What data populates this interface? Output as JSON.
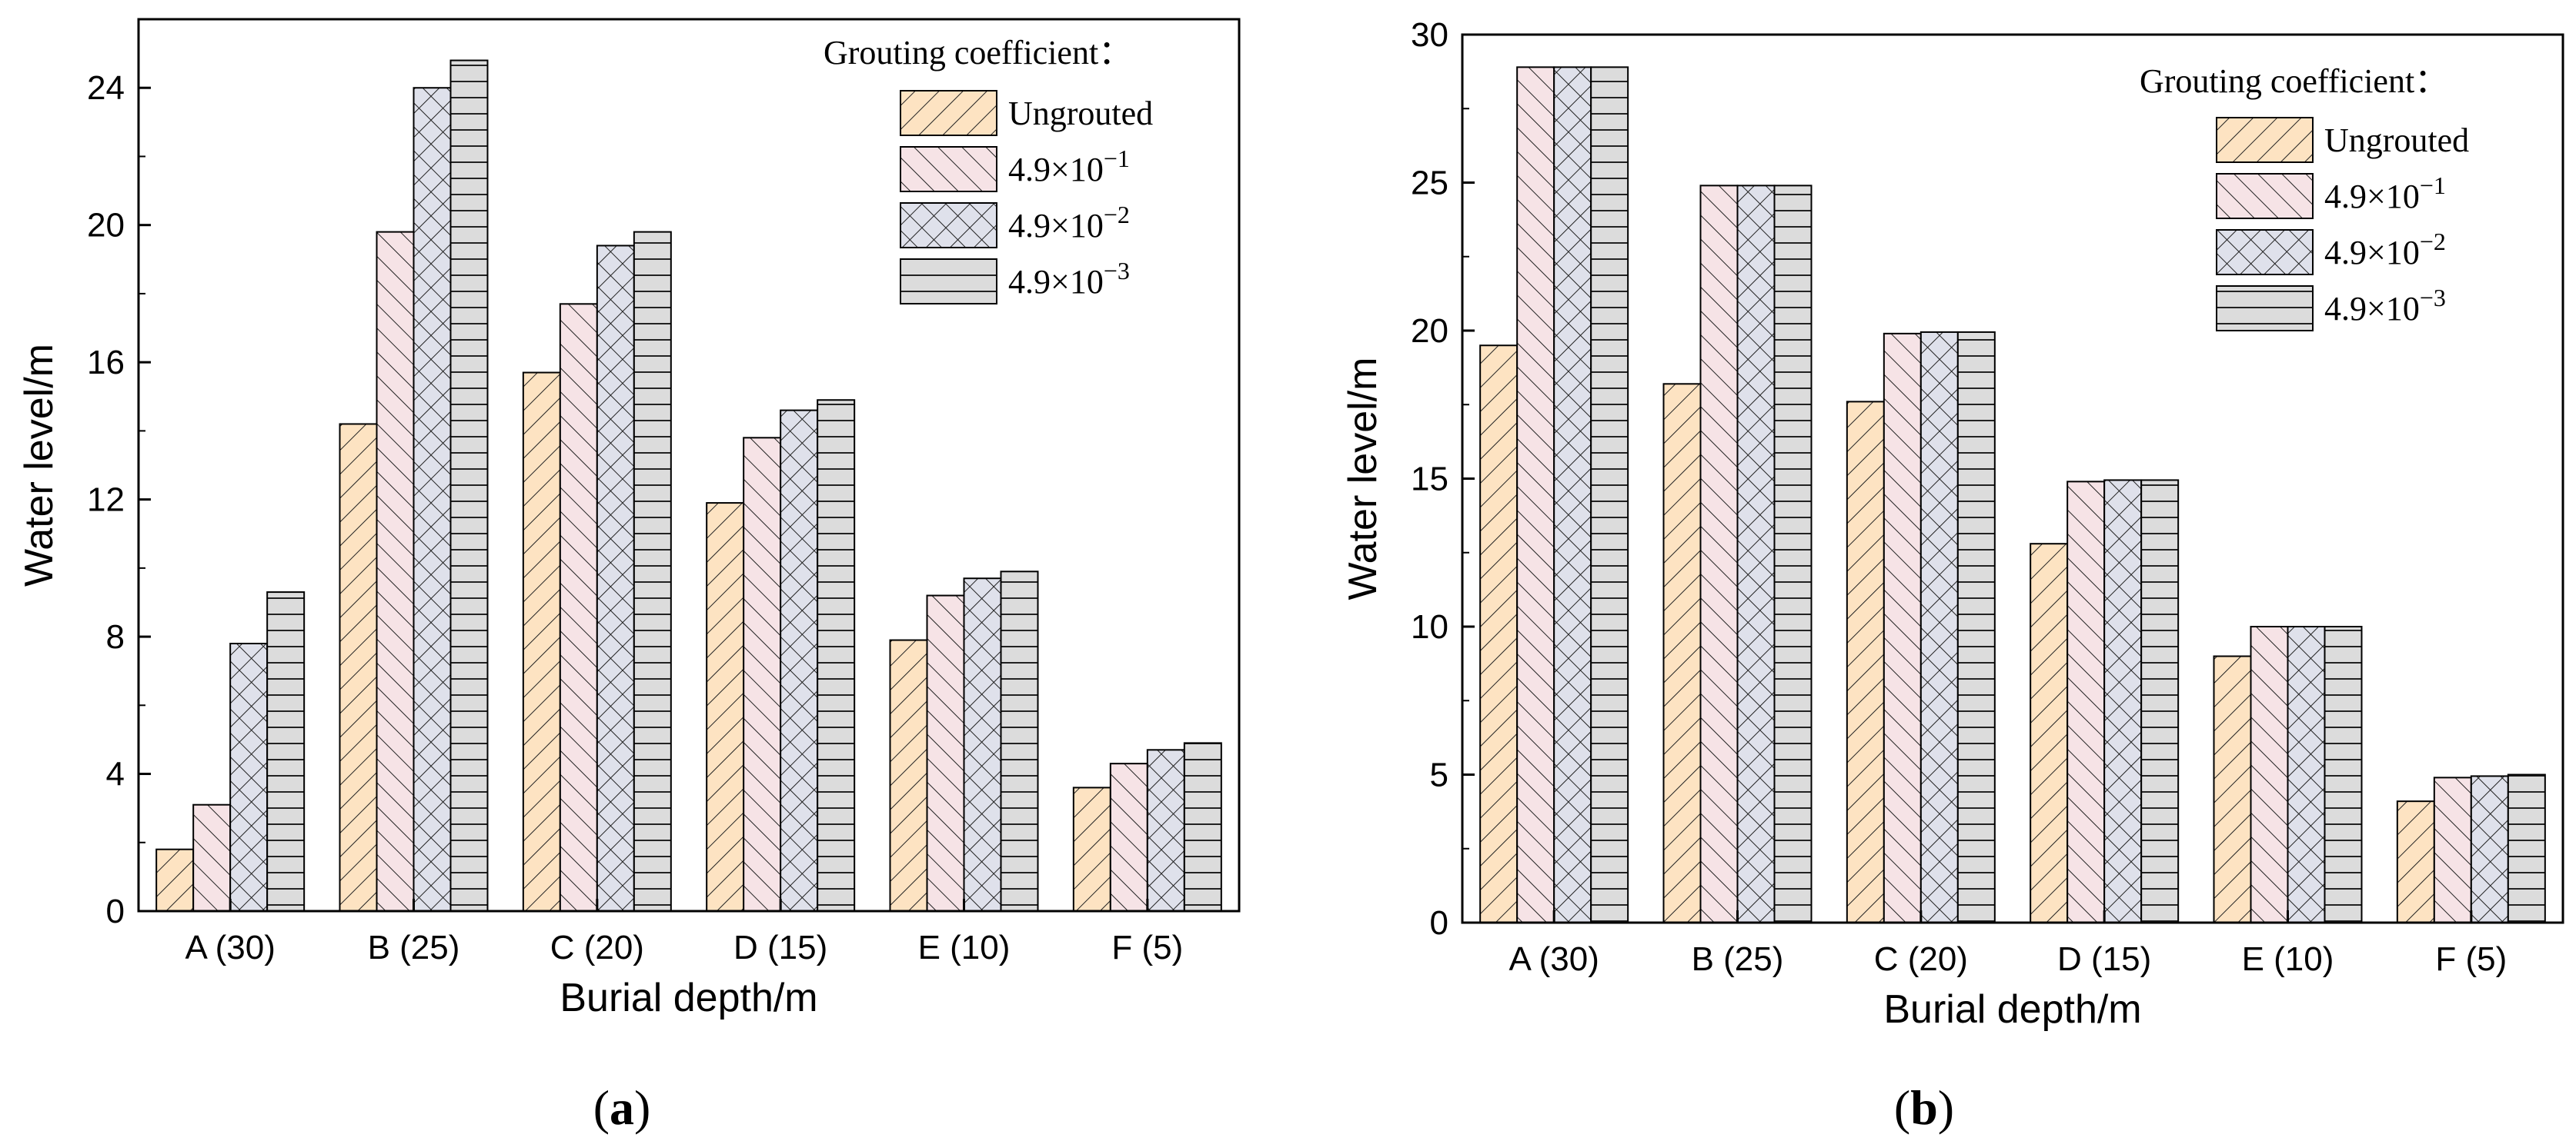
{
  "legend_title": "Grouting coefficient：",
  "series_styles": [
    {
      "fill": "#fde3c2",
      "pattern": "fdiag"
    },
    {
      "fill": "#f6e3e6",
      "pattern": "bdiag"
    },
    {
      "fill": "#dfe1eb",
      "pattern": "cross"
    },
    {
      "fill": "#dcdcdc",
      "pattern": "horiz"
    }
  ],
  "chart_data": [
    {
      "type": "bar",
      "panel_label": "a",
      "xlabel": "Burial depth/m",
      "ylabel": "Water level/m",
      "ylim": [
        0,
        26
      ],
      "yticks": [
        0,
        4,
        8,
        12,
        16,
        20,
        24
      ],
      "categories": [
        "A (30)",
        "B (25)",
        "C (20)",
        "D (15)",
        "E (10)",
        "F (5)"
      ],
      "series": [
        {
          "name": "Ungrouted",
          "base": "Ungrouted",
          "exp": "",
          "values": [
            1.8,
            14.2,
            15.7,
            11.9,
            7.9,
            3.6
          ]
        },
        {
          "name": "4.9×10⁻¹",
          "base": "4.9×10",
          "exp": "−1",
          "values": [
            3.1,
            19.8,
            17.7,
            13.8,
            9.2,
            4.3
          ]
        },
        {
          "name": "4.9×10⁻²",
          "base": "4.9×10",
          "exp": "−2",
          "values": [
            7.8,
            24.0,
            19.4,
            14.6,
            9.7,
            4.7
          ]
        },
        {
          "name": "4.9×10⁻³",
          "base": "4.9×10",
          "exp": "−3",
          "values": [
            9.3,
            24.8,
            19.8,
            14.9,
            9.9,
            4.9
          ]
        }
      ]
    },
    {
      "type": "bar",
      "panel_label": "b",
      "xlabel": "Burial depth/m",
      "ylabel": "Water level/m",
      "ylim": [
        0,
        30
      ],
      "yticks": [
        0,
        5,
        10,
        15,
        20,
        25,
        30
      ],
      "categories": [
        "A (30)",
        "B (25)",
        "C (20)",
        "D (15)",
        "E (10)",
        "F (5)"
      ],
      "series": [
        {
          "name": "Ungrouted",
          "base": "Ungrouted",
          "exp": "",
          "values": [
            19.5,
            18.2,
            17.6,
            12.8,
            9.0,
            4.1
          ]
        },
        {
          "name": "4.9×10⁻¹",
          "base": "4.9×10",
          "exp": "−1",
          "values": [
            28.9,
            24.9,
            19.9,
            14.9,
            10.0,
            4.9
          ]
        },
        {
          "name": "4.9×10⁻²",
          "base": "4.9×10",
          "exp": "−2",
          "values": [
            28.9,
            24.9,
            19.95,
            14.95,
            10.0,
            4.95
          ]
        },
        {
          "name": "4.9×10⁻³",
          "base": "4.9×10",
          "exp": "−3",
          "values": [
            28.9,
            24.9,
            19.95,
            14.95,
            10.0,
            5.0
          ]
        }
      ]
    }
  ]
}
